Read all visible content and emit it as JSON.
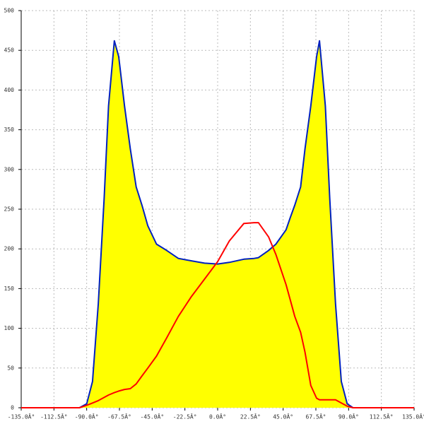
{
  "chart_data": {
    "type": "area",
    "x": [
      -135,
      -95,
      -90,
      -86,
      -82,
      -78,
      -75,
      -71,
      -68,
      -64,
      -60,
      -56,
      -52,
      -48,
      -42,
      -35,
      -27,
      -18,
      -9,
      0,
      8,
      18,
      25,
      28,
      35,
      40,
      47,
      50,
      53,
      57,
      60,
      64,
      68,
      70,
      74,
      77,
      81,
      85,
      89,
      93,
      135
    ],
    "series": [
      {
        "color": "#0020c0",
        "fill": "#ffff00",
        "values": [
          0,
          0,
          5,
          33,
          131,
          264,
          380,
          462,
          442,
          380,
          326,
          278,
          255,
          229,
          206,
          198,
          188,
          185,
          182,
          181,
          183,
          187,
          188,
          189,
          198,
          206,
          224,
          240,
          255,
          278,
          326,
          380,
          442,
          462,
          380,
          264,
          131,
          33,
          5,
          0,
          0
        ]
      },
      {
        "color": "#ff0000",
        "fill": null,
        "values": [
          0,
          0,
          3,
          6,
          9,
          13,
          16,
          19,
          21,
          23,
          24,
          30,
          40,
          50,
          65,
          88,
          115,
          140,
          162,
          184,
          210,
          232,
          233,
          233,
          215,
          193,
          155,
          135,
          115,
          95,
          70,
          28,
          12,
          10,
          10,
          10,
          10,
          6,
          2,
          0,
          0
        ]
      }
    ],
    "xlim": [
      -135,
      135
    ],
    "xticks": [
      {
        "value": -135,
        "label": "-135.0Â°"
      },
      {
        "value": -112.5,
        "label": "-112.5Â°"
      },
      {
        "value": -90,
        "label": "-90.0Â°"
      },
      {
        "value": -67.5,
        "label": "-67.5Â°"
      },
      {
        "value": -45,
        "label": "-45.0Â°"
      },
      {
        "value": -22.5,
        "label": "-22.5Â°"
      },
      {
        "value": 0,
        "label": "0.0Â°"
      },
      {
        "value": 22.5,
        "label": "22.5Â°"
      },
      {
        "value": 45,
        "label": "45.0Â°"
      },
      {
        "value": 67.5,
        "label": "67.5Â°"
      },
      {
        "value": 90,
        "label": "90.0Â°"
      },
      {
        "value": 112.5,
        "label": "112.5Â°"
      },
      {
        "value": 135,
        "label": "135.0Â°"
      }
    ],
    "ylim": [
      0,
      500
    ],
    "yticks": [
      0,
      50,
      100,
      150,
      200,
      250,
      300,
      350,
      400,
      450,
      500
    ],
    "grid": true
  }
}
